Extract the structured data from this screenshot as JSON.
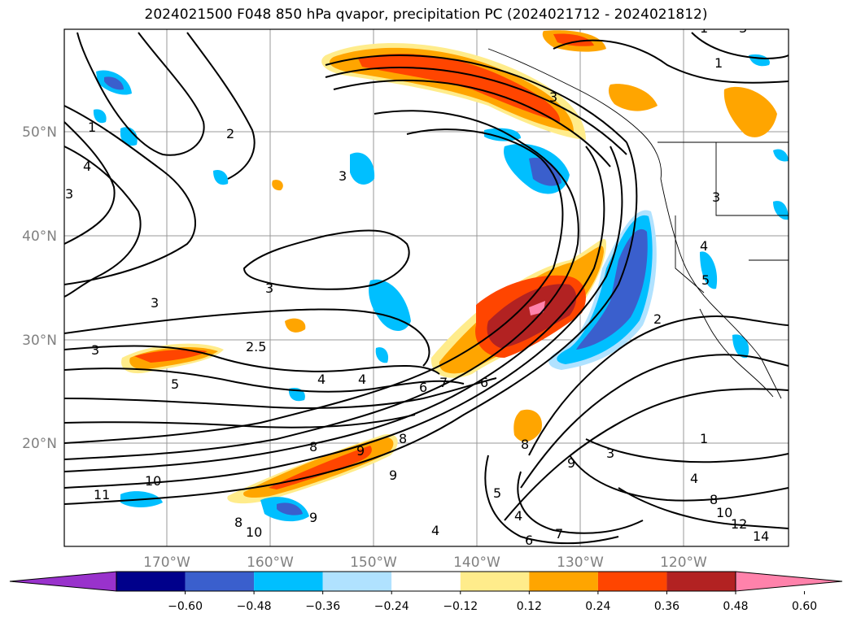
{
  "title": "2024021500 F048 850 hPa qvapor, precipitation PC (2024021712 - 2024021812)",
  "lat_labels": [
    "50°N",
    "40°N",
    "30°N",
    "20°N"
  ],
  "lon_labels": [
    "170°W",
    "160°W",
    "150°W",
    "140°W",
    "130°W",
    "120°W"
  ],
  "colorbar": {
    "ticks": [
      "−0.60",
      "−0.48",
      "−0.36",
      "−0.24",
      "−0.12",
      "0.12",
      "0.24",
      "0.36",
      "0.48",
      "0.60"
    ],
    "colors": [
      "#9932cc",
      "#00008b",
      "#3a5fcd",
      "#00bfff",
      "#b0e2ff",
      "#ffffff",
      "#ffec8b",
      "#ffa500",
      "#ff4500",
      "#b22222",
      "#ff82ab"
    ]
  },
  "contour_labels": [
    "1",
    "2",
    "3",
    "3",
    "4",
    "1",
    "3",
    "3",
    "3",
    "3",
    "2.5",
    "4",
    "4",
    "5",
    "6",
    "6",
    "7",
    "8",
    "9",
    "8",
    "9",
    "10",
    "11",
    "8",
    "10",
    "9",
    "5",
    "4",
    "4",
    "6",
    "7",
    "9",
    "1",
    "3",
    "4",
    "8",
    "10",
    "12",
    "14",
    "4",
    "2",
    "5",
    "3",
    "1",
    "3",
    "8"
  ]
}
